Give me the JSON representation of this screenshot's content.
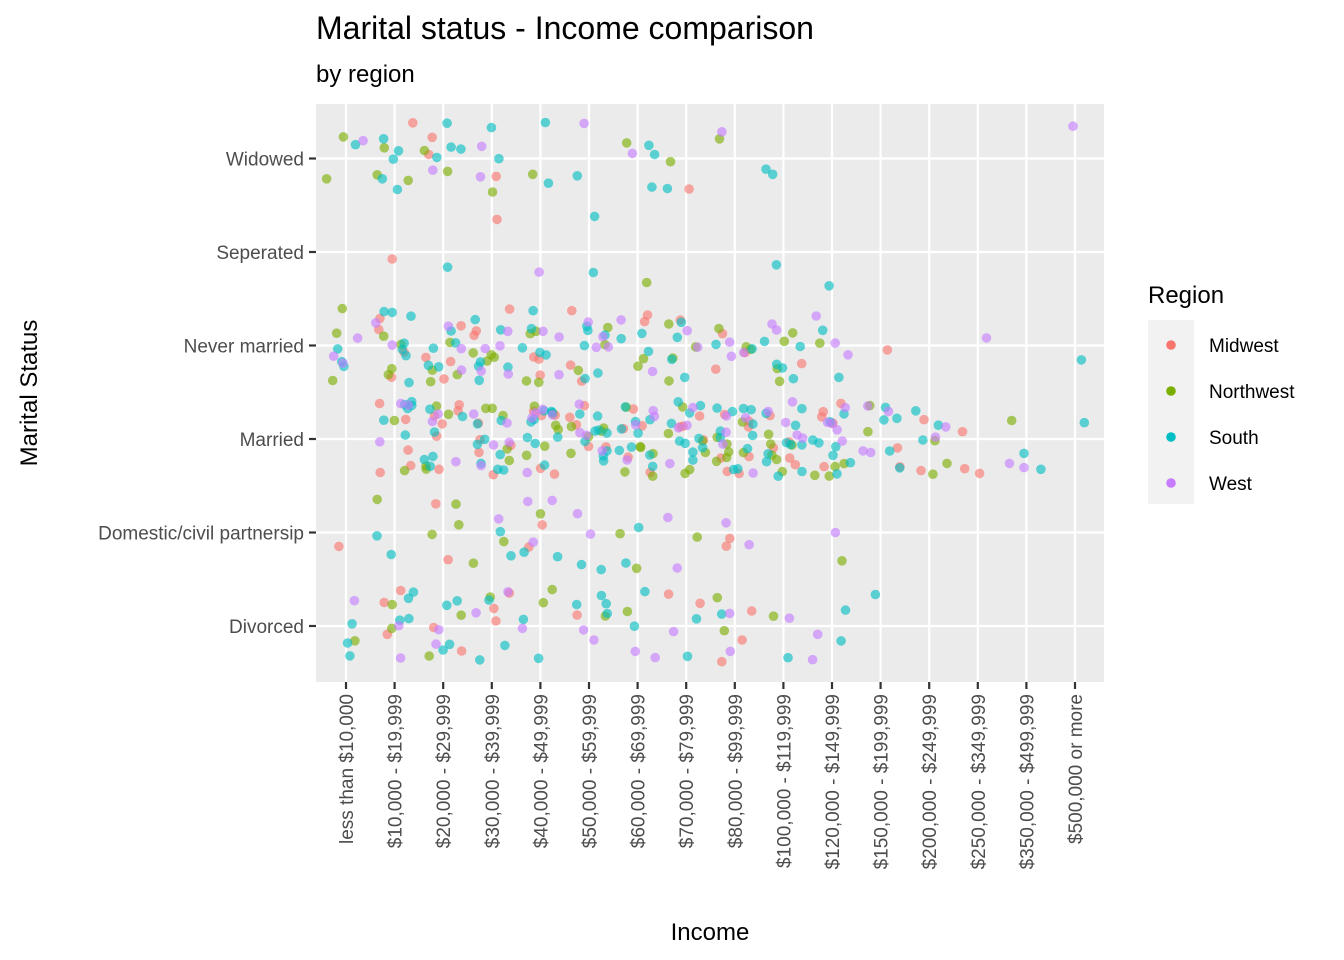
{
  "chart_data": {
    "type": "scatter",
    "title": "Marital status - Income comparison",
    "subtitle": "by region",
    "xlabel": "Income",
    "ylabel": "Marital Status",
    "x_categories": [
      "less than $10,000",
      "$10,000 - $19,999",
      "$20,000 - $29,999",
      "$30,000 - $39,999",
      "$40,000 - $49,999",
      "$50,000 - $59,999",
      "$60,000 - $69,999",
      "$70,000 - $79,999",
      "$80,000 - $99,999",
      "$100,000 - $119,999",
      "$120,000 - $149,999",
      "$150,000 - $199,999",
      "$200,000 - $249,999",
      "$250,000 - $349,999",
      "$350,000 - $499,999",
      "$500,000 or more"
    ],
    "y_categories": [
      "Divorced",
      "Domestic/civil partnersip",
      "Married",
      "Never married",
      "Seperated",
      "Widowed"
    ],
    "jitter": true,
    "grid": true,
    "legend": {
      "title": "Region",
      "position": "right",
      "entries": [
        {
          "name": "Midwest",
          "color": "#F8766D"
        },
        {
          "name": "Northwest",
          "color": "#7CAE00"
        },
        {
          "name": "South",
          "color": "#00BFC4"
        },
        {
          "name": "West",
          "color": "#C77CFF"
        }
      ]
    },
    "counts_per_region": [
      {
        "x": "less than $10,000",
        "y": "Widowed",
        "Midwest": 0,
        "Northwest": 2,
        "South": 1,
        "West": 1
      },
      {
        "x": "$10,000 - $19,999",
        "y": "Widowed",
        "Midwest": 1,
        "Northwest": 3,
        "South": 5,
        "West": 0
      },
      {
        "x": "$20,000 - $29,999",
        "y": "Widowed",
        "Midwest": 2,
        "Northwest": 2,
        "South": 4,
        "West": 1
      },
      {
        "x": "$30,000 - $39,999",
        "y": "Widowed",
        "Midwest": 1,
        "Northwest": 1,
        "South": 2,
        "West": 2
      },
      {
        "x": "$40,000 - $49,999",
        "y": "Widowed",
        "Midwest": 0,
        "Northwest": 1,
        "South": 2,
        "West": 0
      },
      {
        "x": "$50,000 - $59,999",
        "y": "Widowed",
        "Midwest": 0,
        "Northwest": 0,
        "South": 1,
        "West": 1
      },
      {
        "x": "$60,000 - $69,999",
        "y": "Widowed",
        "Midwest": 0,
        "Northwest": 1,
        "South": 3,
        "West": 1
      },
      {
        "x": "$70,000 - $79,999",
        "y": "Widowed",
        "Midwest": 1,
        "Northwest": 1,
        "South": 1,
        "West": 0
      },
      {
        "x": "$80,000 - $99,999",
        "y": "Widowed",
        "Midwest": 0,
        "Northwest": 1,
        "South": 0,
        "West": 1
      },
      {
        "x": "$100,000 - $119,999",
        "y": "Widowed",
        "Midwest": 0,
        "Northwest": 0,
        "South": 2,
        "West": 0
      },
      {
        "x": "$500,000 or more",
        "y": "Widowed",
        "Midwest": 0,
        "Northwest": 0,
        "South": 0,
        "West": 1
      },
      {
        "x": "$10,000 - $19,999",
        "y": "Seperated",
        "Midwest": 1,
        "Northwest": 0,
        "South": 0,
        "West": 0
      },
      {
        "x": "$20,000 - $29,999",
        "y": "Seperated",
        "Midwest": 0,
        "Northwest": 0,
        "South": 1,
        "West": 0
      },
      {
        "x": "$30,000 - $39,999",
        "y": "Seperated",
        "Midwest": 1,
        "Northwest": 0,
        "South": 0,
        "West": 0
      },
      {
        "x": "$40,000 - $49,999",
        "y": "Seperated",
        "Midwest": 0,
        "Northwest": 0,
        "South": 0,
        "West": 1
      },
      {
        "x": "$50,000 - $59,999",
        "y": "Seperated",
        "Midwest": 0,
        "Northwest": 0,
        "South": 2,
        "West": 0
      },
      {
        "x": "$60,000 - $69,999",
        "y": "Seperated",
        "Midwest": 0,
        "Northwest": 1,
        "South": 0,
        "West": 0
      },
      {
        "x": "$100,000 - $119,999",
        "y": "Seperated",
        "Midwest": 0,
        "Northwest": 0,
        "South": 1,
        "West": 0
      },
      {
        "x": "$120,000 - $149,999",
        "y": "Seperated",
        "Midwest": 0,
        "Northwest": 0,
        "South": 1,
        "West": 0
      },
      {
        "x": "less than $10,000",
        "y": "Never married",
        "Midwest": 0,
        "Northwest": 3,
        "South": 3,
        "West": 3
      },
      {
        "x": "$10,000 - $19,999",
        "y": "Never married",
        "Midwest": 4,
        "Northwest": 4,
        "South": 7,
        "West": 2
      },
      {
        "x": "$20,000 - $29,999",
        "y": "Never married",
        "Midwest": 4,
        "Northwest": 4,
        "South": 5,
        "West": 3
      },
      {
        "x": "$30,000 - $39,999",
        "y": "Never married",
        "Midwest": 3,
        "Northwest": 4,
        "South": 6,
        "West": 5
      },
      {
        "x": "$40,000 - $49,999",
        "y": "Never married",
        "Midwest": 3,
        "Northwest": 4,
        "South": 5,
        "West": 3
      },
      {
        "x": "$50,000 - $59,999",
        "y": "Never married",
        "Midwest": 3,
        "Northwest": 3,
        "South": 6,
        "West": 4
      },
      {
        "x": "$60,000 - $69,999",
        "y": "Never married",
        "Midwest": 2,
        "Northwest": 2,
        "South": 3,
        "West": 2
      },
      {
        "x": "$70,000 - $79,999",
        "y": "Never married",
        "Midwest": 1,
        "Northwest": 4,
        "South": 4,
        "West": 2
      },
      {
        "x": "$80,000 - $99,999",
        "y": "Never married",
        "Midwest": 3,
        "Northwest": 3,
        "South": 2,
        "West": 3
      },
      {
        "x": "$100,000 - $119,999",
        "y": "Never married",
        "Midwest": 1,
        "Northwest": 4,
        "South": 5,
        "West": 2
      },
      {
        "x": "$120,000 - $149,999",
        "y": "Never married",
        "Midwest": 0,
        "Northwest": 1,
        "South": 2,
        "West": 3
      },
      {
        "x": "$150,000 - $199,999",
        "y": "Never married",
        "Midwest": 1,
        "Northwest": 0,
        "South": 0,
        "West": 0
      },
      {
        "x": "$250,000 - $349,999",
        "y": "Never married",
        "Midwest": 0,
        "Northwest": 0,
        "South": 0,
        "West": 1
      },
      {
        "x": "$500,000 or more",
        "y": "Never married",
        "Midwest": 0,
        "Northwest": 0,
        "South": 1,
        "West": 0
      },
      {
        "x": "$10,000 - $19,999",
        "y": "Married",
        "Midwest": 5,
        "Northwest": 2,
        "South": 6,
        "West": 3
      },
      {
        "x": "$20,000 - $29,999",
        "y": "Married",
        "Midwest": 6,
        "Northwest": 4,
        "South": 6,
        "West": 3
      },
      {
        "x": "$30,000 - $39,999",
        "y": "Married",
        "Midwest": 5,
        "Northwest": 5,
        "South": 8,
        "West": 5
      },
      {
        "x": "$40,000 - $49,999",
        "y": "Married",
        "Midwest": 5,
        "Northwest": 6,
        "South": 9,
        "West": 5
      },
      {
        "x": "$50,000 - $59,999",
        "y": "Married",
        "Midwest": 5,
        "Northwest": 5,
        "South": 9,
        "West": 4
      },
      {
        "x": "$60,000 - $69,999",
        "y": "Married",
        "Midwest": 5,
        "Northwest": 6,
        "South": 9,
        "West": 4
      },
      {
        "x": "$70,000 - $79,999",
        "y": "Married",
        "Midwest": 4,
        "Northwest": 6,
        "South": 10,
        "West": 4
      },
      {
        "x": "$80,000 - $99,999",
        "y": "Married",
        "Midwest": 7,
        "Northwest": 7,
        "South": 11,
        "West": 5
      },
      {
        "x": "$100,000 - $119,999",
        "y": "Married",
        "Midwest": 5,
        "Northwest": 6,
        "South": 10,
        "West": 5
      },
      {
        "x": "$120,000 - $149,999",
        "y": "Married",
        "Midwest": 5,
        "Northwest": 4,
        "South": 8,
        "West": 5
      },
      {
        "x": "$150,000 - $199,999",
        "y": "Married",
        "Midwest": 2,
        "Northwest": 2,
        "South": 5,
        "West": 4
      },
      {
        "x": "$200,000 - $249,999",
        "y": "Married",
        "Midwest": 2,
        "Northwest": 3,
        "South": 3,
        "West": 2
      },
      {
        "x": "$250,000 - $349,999",
        "y": "Married",
        "Midwest": 3,
        "Northwest": 0,
        "South": 0,
        "West": 0
      },
      {
        "x": "$350,000 - $499,999",
        "y": "Married",
        "Midwest": 0,
        "Northwest": 1,
        "South": 2,
        "West": 2
      },
      {
        "x": "$500,000 or more",
        "y": "Married",
        "Midwest": 0,
        "Northwest": 0,
        "South": 1,
        "West": 0
      },
      {
        "x": "less than $10,000",
        "y": "Domestic/civil partnersip",
        "Midwest": 1,
        "Northwest": 0,
        "South": 0,
        "West": 0
      },
      {
        "x": "$10,000 - $19,999",
        "y": "Domestic/civil partnersip",
        "Midwest": 0,
        "Northwest": 1,
        "South": 2,
        "West": 0
      },
      {
        "x": "$20,000 - $29,999",
        "y": "Domestic/civil partnersip",
        "Midwest": 2,
        "Northwest": 3,
        "South": 0,
        "West": 0
      },
      {
        "x": "$30,000 - $39,999",
        "y": "Domestic/civil partnersip",
        "Midwest": 0,
        "Northwest": 2,
        "South": 2,
        "West": 1
      },
      {
        "x": "$40,000 - $49,999",
        "y": "Domestic/civil partnersip",
        "Midwest": 2,
        "Northwest": 1,
        "South": 2,
        "West": 3
      },
      {
        "x": "$50,000 - $59,999",
        "y": "Domestic/civil partnersip",
        "Midwest": 0,
        "Northwest": 0,
        "South": 2,
        "West": 2
      },
      {
        "x": "$60,000 - $69,999",
        "y": "Domestic/civil partnersip",
        "Midwest": 0,
        "Northwest": 2,
        "South": 2,
        "West": 0
      },
      {
        "x": "$70,000 - $79,999",
        "y": "Domestic/civil partnersip",
        "Midwest": 0,
        "Northwest": 1,
        "South": 0,
        "West": 2
      },
      {
        "x": "$80,000 - $99,999",
        "y": "Domestic/civil partnersip",
        "Midwest": 2,
        "Northwest": 0,
        "South": 0,
        "West": 2
      },
      {
        "x": "$120,000 - $149,999",
        "y": "Domestic/civil partnersip",
        "Midwest": 0,
        "Northwest": 1,
        "South": 0,
        "West": 1
      },
      {
        "x": "less than $10,000",
        "y": "Divorced",
        "Midwest": 0,
        "Northwest": 1,
        "South": 3,
        "West": 1
      },
      {
        "x": "$10,000 - $19,999",
        "y": "Divorced",
        "Midwest": 3,
        "Northwest": 2,
        "South": 4,
        "West": 2
      },
      {
        "x": "$20,000 - $29,999",
        "y": "Divorced",
        "Midwest": 2,
        "Northwest": 2,
        "South": 4,
        "West": 2
      },
      {
        "x": "$30,000 - $39,999",
        "y": "Divorced",
        "Midwest": 3,
        "Northwest": 1,
        "South": 3,
        "West": 2
      },
      {
        "x": "$40,000 - $49,999",
        "y": "Divorced",
        "Midwest": 0,
        "Northwest": 2,
        "South": 2,
        "West": 1
      },
      {
        "x": "$50,000 - $59,999",
        "y": "Divorced",
        "Midwest": 1,
        "Northwest": 1,
        "South": 4,
        "West": 2
      },
      {
        "x": "$60,000 - $69,999",
        "y": "Divorced",
        "Midwest": 0,
        "Northwest": 1,
        "South": 2,
        "West": 2
      },
      {
        "x": "$70,000 - $79,999",
        "y": "Divorced",
        "Midwest": 2,
        "Northwest": 0,
        "South": 2,
        "West": 1
      },
      {
        "x": "$80,000 - $99,999",
        "y": "Divorced",
        "Midwest": 3,
        "Northwest": 2,
        "South": 1,
        "West": 2
      },
      {
        "x": "$100,000 - $119,999",
        "y": "Divorced",
        "Midwest": 0,
        "Northwest": 1,
        "South": 1,
        "West": 1
      },
      {
        "x": "$120,000 - $149,999",
        "y": "Divorced",
        "Midwest": 0,
        "Northwest": 0,
        "South": 2,
        "West": 2
      },
      {
        "x": "$150,000 - $199,999",
        "y": "Divorced",
        "Midwest": 0,
        "Northwest": 0,
        "South": 1,
        "West": 0
      }
    ]
  }
}
